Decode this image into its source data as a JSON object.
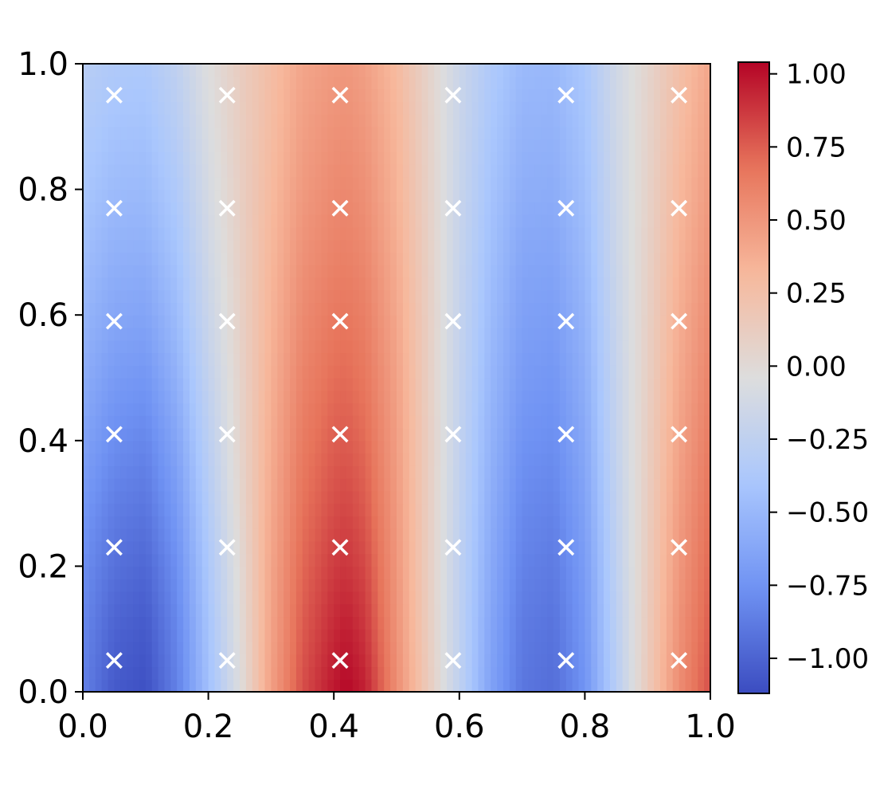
{
  "chart_data": {
    "type": "heatmap",
    "title": "",
    "xlabel": "",
    "ylabel": "",
    "xlim": [
      0.0,
      1.0
    ],
    "ylim": [
      0.0,
      1.0
    ],
    "xticks": [
      "0.0",
      "0.2",
      "0.4",
      "0.6",
      "0.8",
      "1.0"
    ],
    "yticks": [
      "0.0",
      "0.2",
      "0.4",
      "0.6",
      "0.8",
      "1.0"
    ],
    "colormap": "coolwarm",
    "colormap_stops": [
      "#3b4cc0",
      "#6f92f3",
      "#aac7fd",
      "#dddddd",
      "#f7b89c",
      "#e7745b",
      "#b40426"
    ],
    "colorbar": {
      "range": [
        -1.12,
        1.04
      ],
      "ticks": [
        1.0,
        0.75,
        0.5,
        0.25,
        0.0,
        -0.25,
        -0.5,
        -0.75,
        -1.0
      ],
      "tick_labels": [
        "1.00",
        "0.75",
        "0.50",
        "0.25",
        "0.00",
        "−0.25",
        "−0.50",
        "−0.75",
        "−1.00"
      ]
    },
    "marker": {
      "symbol": "x",
      "color": "#ffffff"
    },
    "sample_points": {
      "x": [
        0.05,
        0.23,
        0.41,
        0.59,
        0.77,
        0.95
      ],
      "y": [
        0.05,
        0.23,
        0.41,
        0.59,
        0.77,
        0.95
      ]
    },
    "field_x": [
      0.0,
      0.05,
      0.1,
      0.15,
      0.2,
      0.25,
      0.3,
      0.35,
      0.4,
      0.42,
      0.45,
      0.5,
      0.55,
      0.6,
      0.65,
      0.7,
      0.75,
      0.8,
      0.85,
      0.9,
      0.95,
      1.0
    ],
    "field_y": [
      0.0,
      0.1,
      0.2,
      0.3,
      0.4,
      0.5,
      0.6,
      0.7,
      0.8,
      0.9,
      1.0
    ],
    "field_values": [
      [
        -0.85,
        -1.05,
        -1.1,
        -0.85,
        -0.45,
        -0.05,
        0.45,
        0.8,
        0.98,
        1.03,
        0.95,
        0.55,
        0.15,
        -0.25,
        -0.65,
        -0.9,
        -0.95,
        -0.75,
        -0.3,
        0.15,
        0.55,
        0.8
      ],
      [
        -0.82,
        -1.0,
        -1.05,
        -0.82,
        -0.42,
        -0.02,
        0.43,
        0.76,
        0.92,
        0.96,
        0.88,
        0.52,
        0.13,
        -0.25,
        -0.63,
        -0.88,
        -0.92,
        -0.72,
        -0.28,
        0.14,
        0.52,
        0.76
      ],
      [
        -0.78,
        -0.93,
        -0.98,
        -0.77,
        -0.38,
        0.0,
        0.42,
        0.72,
        0.86,
        0.88,
        0.82,
        0.5,
        0.12,
        -0.25,
        -0.6,
        -0.84,
        -0.88,
        -0.69,
        -0.26,
        0.13,
        0.49,
        0.72
      ],
      [
        -0.72,
        -0.86,
        -0.9,
        -0.7,
        -0.33,
        0.03,
        0.4,
        0.68,
        0.8,
        0.82,
        0.76,
        0.48,
        0.12,
        -0.24,
        -0.57,
        -0.8,
        -0.83,
        -0.65,
        -0.24,
        0.12,
        0.46,
        0.68
      ],
      [
        -0.65,
        -0.78,
        -0.82,
        -0.63,
        -0.28,
        0.05,
        0.38,
        0.64,
        0.75,
        0.76,
        0.71,
        0.46,
        0.12,
        -0.23,
        -0.54,
        -0.75,
        -0.78,
        -0.61,
        -0.22,
        0.11,
        0.43,
        0.64
      ],
      [
        -0.58,
        -0.7,
        -0.73,
        -0.55,
        -0.23,
        0.06,
        0.36,
        0.6,
        0.7,
        0.71,
        0.66,
        0.44,
        0.11,
        -0.22,
        -0.51,
        -0.7,
        -0.73,
        -0.57,
        -0.21,
        0.1,
        0.4,
        0.6
      ],
      [
        -0.52,
        -0.62,
        -0.64,
        -0.48,
        -0.18,
        0.08,
        0.34,
        0.56,
        0.65,
        0.66,
        0.62,
        0.41,
        0.11,
        -0.21,
        -0.48,
        -0.66,
        -0.68,
        -0.53,
        -0.19,
        0.09,
        0.37,
        0.56
      ],
      [
        -0.46,
        -0.55,
        -0.56,
        -0.42,
        -0.14,
        0.09,
        0.32,
        0.52,
        0.6,
        0.61,
        0.57,
        0.38,
        0.1,
        -0.2,
        -0.45,
        -0.62,
        -0.63,
        -0.49,
        -0.17,
        0.08,
        0.34,
        0.52
      ],
      [
        -0.4,
        -0.48,
        -0.49,
        -0.36,
        -0.1,
        0.1,
        0.3,
        0.48,
        0.56,
        0.57,
        0.53,
        0.35,
        0.09,
        -0.19,
        -0.42,
        -0.57,
        -0.58,
        -0.45,
        -0.16,
        0.07,
        0.31,
        0.48
      ],
      [
        -0.35,
        -0.42,
        -0.43,
        -0.3,
        -0.07,
        0.11,
        0.28,
        0.45,
        0.52,
        0.53,
        0.49,
        0.33,
        0.08,
        -0.18,
        -0.39,
        -0.53,
        -0.54,
        -0.42,
        -0.15,
        0.06,
        0.28,
        0.45
      ],
      [
        -0.3,
        -0.36,
        -0.37,
        -0.25,
        -0.04,
        0.12,
        0.27,
        0.42,
        0.48,
        0.49,
        0.45,
        0.3,
        0.07,
        -0.17,
        -0.36,
        -0.49,
        -0.5,
        -0.39,
        -0.14,
        0.05,
        0.25,
        0.42
      ]
    ]
  }
}
